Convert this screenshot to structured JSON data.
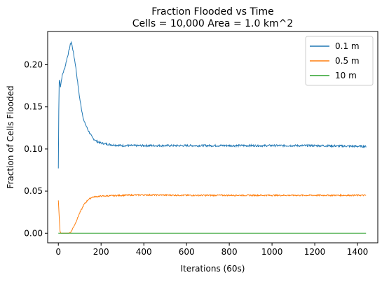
{
  "chart_data": {
    "type": "line",
    "title_lines": [
      "Fraction Flooded vs Time",
      "Cells = 10,000 Area = 1.0 km^2"
    ],
    "xlabel": "Iterations (60s)",
    "ylabel": "Fraction of Cells Flooded",
    "xlim": [
      -50,
      1495
    ],
    "ylim": [
      -0.0114,
      0.2395
    ],
    "xticks": [
      0,
      200,
      400,
      600,
      800,
      1000,
      1200,
      1400
    ],
    "yticks": [
      0.0,
      0.05,
      0.1,
      0.15,
      0.2
    ],
    "xtick_labels": [
      "0",
      "200",
      "400",
      "600",
      "800",
      "1000",
      "1200",
      "1400"
    ],
    "ytick_labels": [
      "0.00",
      "0.05",
      "0.10",
      "0.15",
      "0.20"
    ],
    "grid": false,
    "legend_position": "top-right",
    "series": [
      {
        "name": "0.1 m",
        "color": "#1f77b4",
        "noise": 0.0012,
        "points": [
          [
            0,
            0.077
          ],
          [
            3,
            0.178
          ],
          [
            6,
            0.182
          ],
          [
            10,
            0.174
          ],
          [
            15,
            0.183
          ],
          [
            20,
            0.189
          ],
          [
            30,
            0.196
          ],
          [
            40,
            0.207
          ],
          [
            50,
            0.217
          ],
          [
            55,
            0.223
          ],
          [
            60,
            0.227
          ],
          [
            65,
            0.222
          ],
          [
            70,
            0.215
          ],
          [
            80,
            0.2
          ],
          [
            90,
            0.18
          ],
          [
            100,
            0.16
          ],
          [
            110,
            0.145
          ],
          [
            120,
            0.133
          ],
          [
            140,
            0.122
          ],
          [
            160,
            0.113
          ],
          [
            180,
            0.109
          ],
          [
            200,
            0.107
          ],
          [
            250,
            0.105
          ],
          [
            300,
            0.104
          ],
          [
            400,
            0.104
          ],
          [
            600,
            0.104
          ],
          [
            800,
            0.104
          ],
          [
            1000,
            0.104
          ],
          [
            1200,
            0.104
          ],
          [
            1440,
            0.103
          ]
        ]
      },
      {
        "name": "0.5 m",
        "color": "#ff7f0e",
        "noise": 0.0008,
        "points": [
          [
            0,
            0.039
          ],
          [
            5,
            0.015
          ],
          [
            8,
            0.002
          ],
          [
            12,
            0.0
          ],
          [
            50,
            0.0
          ],
          [
            60,
            0.002
          ],
          [
            80,
            0.012
          ],
          [
            100,
            0.024
          ],
          [
            120,
            0.034
          ],
          [
            140,
            0.04
          ],
          [
            160,
            0.043
          ],
          [
            200,
            0.044
          ],
          [
            300,
            0.045
          ],
          [
            400,
            0.0455
          ],
          [
            600,
            0.045
          ],
          [
            800,
            0.045
          ],
          [
            1000,
            0.045
          ],
          [
            1200,
            0.045
          ],
          [
            1440,
            0.045
          ]
        ]
      },
      {
        "name": "10 m",
        "color": "#2ca02c",
        "noise": 0,
        "points": [
          [
            0,
            0.0
          ],
          [
            1440,
            0.0
          ]
        ]
      }
    ]
  }
}
